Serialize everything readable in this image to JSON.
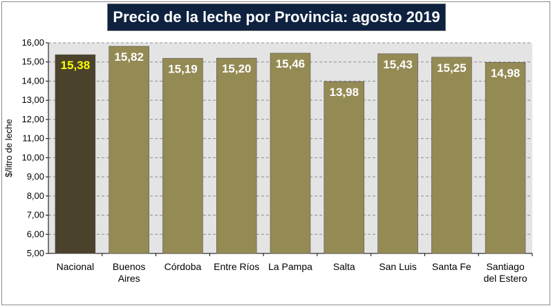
{
  "chart_data": {
    "type": "bar",
    "title": "Precio de la leche por Provincia: agosto 2019",
    "xlabel": "",
    "ylabel": "$/litro de leche",
    "ylim": [
      5,
      16
    ],
    "ytick_step": 1,
    "ytick_labels": [
      "5,00",
      "6,00",
      "7,00",
      "8,00",
      "9,00",
      "10,00",
      "11,00",
      "12,00",
      "13,00",
      "14,00",
      "15,00",
      "16,00"
    ],
    "grid": true,
    "categories": [
      "Nacional",
      "Buenos Aires",
      "Córdoba",
      "Entre Ríos",
      "La Pampa",
      "Salta",
      "San Luis",
      "Santa Fe",
      "Santiago del Estero"
    ],
    "category_lines": [
      [
        "Nacional"
      ],
      [
        "Buenos",
        "Aires"
      ],
      [
        "Córdoba"
      ],
      [
        "Entre Ríos"
      ],
      [
        "La Pampa"
      ],
      [
        "Salta"
      ],
      [
        "San Luis"
      ],
      [
        "Santa Fe"
      ],
      [
        "Santiago",
        "del Estero"
      ]
    ],
    "values": [
      15.38,
      15.82,
      15.19,
      15.2,
      15.46,
      13.98,
      15.43,
      15.25,
      14.98
    ],
    "value_labels": [
      "15,38",
      "15,82",
      "15,19",
      "15,20",
      "15,46",
      "13,98",
      "15,43",
      "15,25",
      "14,98"
    ],
    "highlight_index": 0
  },
  "colors": {
    "bar": "#948a54",
    "bar_highlight": "#4a422b",
    "label": "#ffffff",
    "label_highlight": "#ffff00",
    "plot_bg": "#e4e4e4",
    "grid": "#8c8c8c",
    "title_bg": "#0e2240"
  }
}
